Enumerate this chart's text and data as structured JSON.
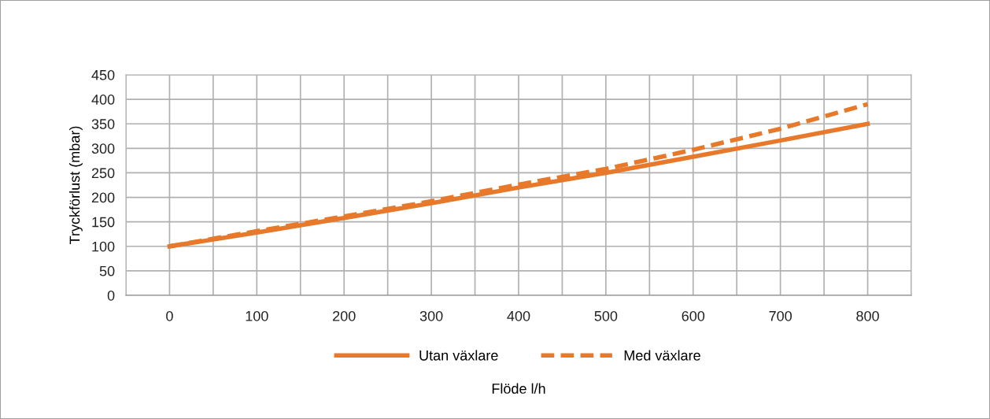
{
  "chart_data": {
    "type": "line",
    "xlabel": "Flöde l/h",
    "ylabel": "Tryckförlust (mbar)",
    "x": [
      0,
      100,
      200,
      300,
      400,
      500,
      600,
      700,
      800
    ],
    "series": [
      {
        "name": "Utan växlare",
        "color": "#e8782a",
        "values": [
          100,
          128,
          158,
          188,
          220,
          250,
          283,
          316,
          350
        ],
        "line_style": "solid"
      },
      {
        "name": "Med växlare",
        "color": "#e8782a",
        "values": [
          100,
          131,
          161,
          192,
          226,
          258,
          297,
          340,
          390
        ],
        "line_style": "dashed"
      }
    ],
    "xlim": [
      -50,
      850
    ],
    "xticks": [
      {
        "value": -50,
        "label": null
      },
      0,
      {
        "value": 50,
        "label": null
      },
      100,
      {
        "value": 150,
        "label": null
      },
      200,
      {
        "value": 250,
        "label": null
      },
      300,
      {
        "value": 350,
        "label": null
      },
      400,
      {
        "value": 450,
        "label": null
      },
      500,
      {
        "value": 550,
        "label": null
      },
      600,
      {
        "value": 650,
        "label": null
      },
      700,
      {
        "value": 750,
        "label": null
      },
      800,
      {
        "value": 850,
        "label": null
      }
    ],
    "ylim": [
      0,
      450
    ],
    "yticks": [
      0,
      50,
      100,
      150,
      200,
      250,
      300,
      350,
      400,
      450
    ],
    "grid": true,
    "legend": "bottom",
    "marker": "none"
  }
}
